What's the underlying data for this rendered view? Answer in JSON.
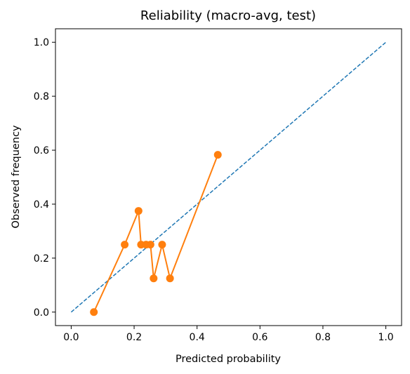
{
  "chart_data": {
    "type": "line",
    "title": "Reliability (macro-avg, test)",
    "xlabel": "Predicted probability",
    "ylabel": "Observed frequency",
    "xlim": [
      -0.05,
      1.05
    ],
    "ylim": [
      -0.05,
      1.05
    ],
    "xticks": [
      "0.0",
      "0.2",
      "0.4",
      "0.6",
      "0.8",
      "1.0"
    ],
    "yticks": [
      "0.0",
      "0.2",
      "0.4",
      "0.6",
      "0.8",
      "1.0"
    ],
    "grid": false,
    "legend": "none",
    "series": [
      {
        "style": "dashed",
        "color": "#1f77b4",
        "x": [
          0.0,
          1.0
        ],
        "y": [
          0.0,
          1.0
        ]
      },
      {
        "style": "line-markers",
        "color": "#ff7f0e",
        "x": [
          0.072,
          0.17,
          0.214,
          0.222,
          0.238,
          0.252,
          0.262,
          0.289,
          0.314,
          0.466
        ],
        "y": [
          0.0,
          0.25,
          0.375,
          0.25,
          0.25,
          0.25,
          0.125,
          0.25,
          0.125,
          0.583
        ]
      }
    ]
  }
}
